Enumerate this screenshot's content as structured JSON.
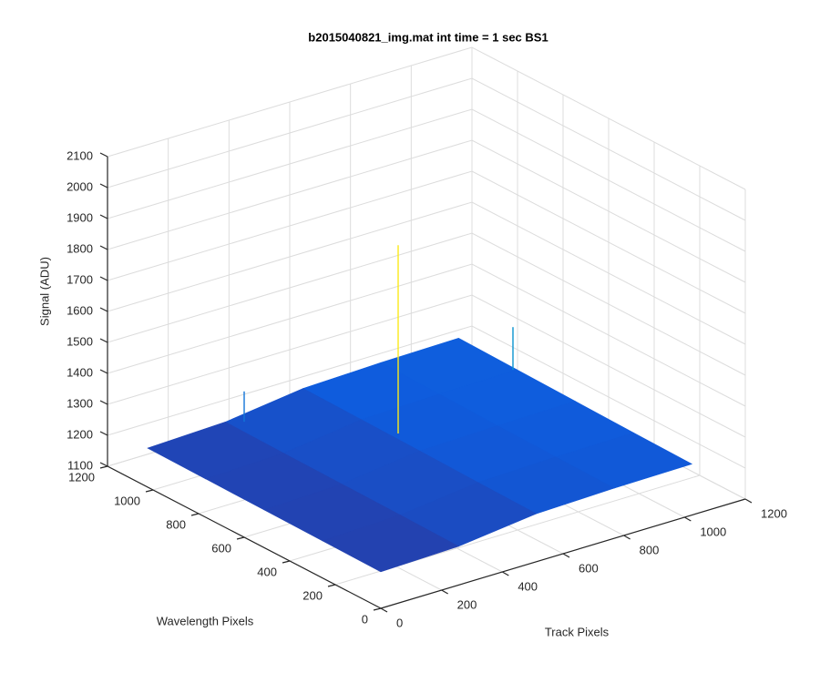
{
  "chart_data": {
    "type": "surface",
    "title": "b2015040821_img.mat int time = 1 sec   BS1",
    "xlabel": "Track Pixels",
    "ylabel": "Wavelength Pixels",
    "zlabel": "Signal (ADU)",
    "x": [
      0,
      256,
      512,
      768,
      1024
    ],
    "y": [
      0,
      256,
      512,
      768,
      1024
    ],
    "z": [
      [
        1218,
        1225,
        1255,
        1262,
        1265
      ],
      [
        1220,
        1228,
        1258,
        1265,
        1268
      ],
      [
        1222,
        1230,
        1262,
        1268,
        1272
      ],
      [
        1224,
        1232,
        1265,
        1272,
        1276
      ],
      [
        1226,
        1235,
        1268,
        1276,
        1280
      ]
    ],
    "peaks": {
      "x": [
        537,
        1020,
        300
      ],
      "y": [
        640,
        780,
        1000
      ],
      "z": [
        1870,
        1410,
        1330
      ]
    },
    "xlim": [
      0,
      1200
    ],
    "xticks": [
      0,
      200,
      400,
      600,
      800,
      1000,
      1200
    ],
    "ylim": [
      0,
      1200
    ],
    "yticks": [
      0,
      200,
      400,
      600,
      800,
      1000,
      1200
    ],
    "zlim": [
      1100,
      2100
    ],
    "zticks": [
      1100,
      1200,
      1300,
      1400,
      1500,
      1600,
      1700,
      1800,
      1900,
      2000,
      2100
    ],
    "clim": [
      1180,
      1900
    ],
    "colormap": [
      "#352a87",
      "#0f5cdd",
      "#1481d6",
      "#06a4ca",
      "#2eb7a4",
      "#87bf77",
      "#d1bb59",
      "#fec832",
      "#f9fb0e"
    ],
    "grid": true
  }
}
